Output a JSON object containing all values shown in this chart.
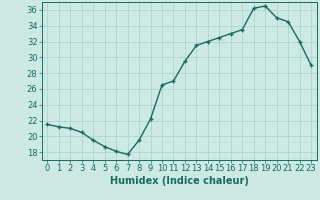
{
  "x": [
    0,
    1,
    2,
    3,
    4,
    5,
    6,
    7,
    8,
    9,
    10,
    11,
    12,
    13,
    14,
    15,
    16,
    17,
    18,
    19,
    20,
    21,
    22,
    23
  ],
  "y": [
    21.5,
    21.2,
    21.0,
    20.5,
    19.5,
    18.7,
    18.1,
    17.7,
    19.5,
    22.2,
    26.5,
    27.0,
    29.5,
    31.5,
    32.0,
    32.5,
    33.0,
    33.5,
    36.2,
    36.5,
    35.0,
    34.5,
    32.0,
    29.0
  ],
  "line_color": "#1a6b5e",
  "marker": "+",
  "marker_size": 3,
  "bg_color": "#cce9e4",
  "grid_color": "#b0d4ce",
  "xlabel": "Humidex (Indice chaleur)",
  "xlim": [
    -0.5,
    23.5
  ],
  "ylim": [
    17,
    37
  ],
  "yticks": [
    18,
    20,
    22,
    24,
    26,
    28,
    30,
    32,
    34,
    36
  ],
  "xticks": [
    0,
    1,
    2,
    3,
    4,
    5,
    6,
    7,
    8,
    9,
    10,
    11,
    12,
    13,
    14,
    15,
    16,
    17,
    18,
    19,
    20,
    21,
    22,
    23
  ],
  "xlabel_fontsize": 7.0,
  "tick_fontsize": 6.0,
  "line_width": 1.0,
  "marker_edge_width": 1.0
}
